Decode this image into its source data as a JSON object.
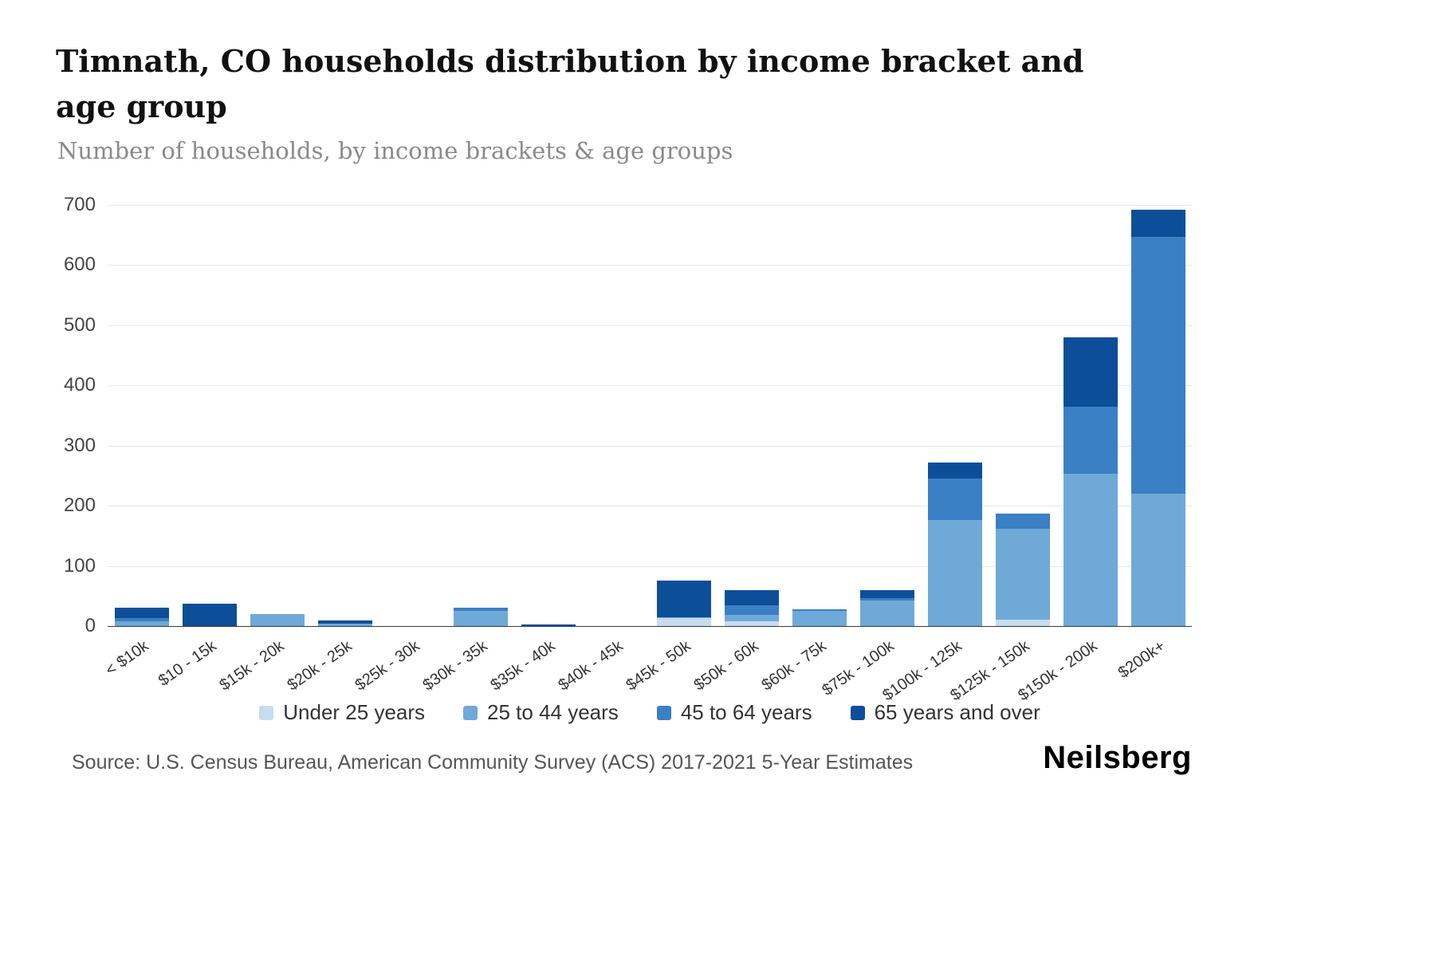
{
  "header": {
    "title": "Timnath, CO households distribution by income bracket and age group",
    "subtitle": "Number of households, by income brackets & age groups"
  },
  "chart_data": {
    "type": "bar",
    "stacked": true,
    "title": "Timnath, CO households distribution by income bracket and age group",
    "subtitle": "Number of households, by income brackets & age groups",
    "xlabel": "",
    "ylabel": "",
    "ylim": [
      0,
      700
    ],
    "ytick_step": 100,
    "yticks": [
      0,
      100,
      200,
      300,
      400,
      500,
      600,
      700
    ],
    "grid": true,
    "legend_position": "bottom",
    "categories": [
      "< $10k",
      "$10 - 15k",
      "$15k - 20k",
      "$20k - 25k",
      "$25k - 30k",
      "$30k - 35k",
      "$35k - 40k",
      "$40k - 45k",
      "$45k - 50k",
      "$50k - 60k",
      "$60k - 75k",
      "$75k - 100k",
      "$100k - 125k",
      "$125k - 150k",
      "$150k - 200k",
      "$200k+"
    ],
    "series": [
      {
        "name": "Under 25 years",
        "color": "#c7dcee",
        "values": [
          0,
          0,
          0,
          0,
          0,
          0,
          0,
          0,
          13,
          8,
          0,
          0,
          0,
          10,
          0,
          0
        ]
      },
      {
        "name": "25 to 44 years",
        "color": "#6fa9d8",
        "values": [
          8,
          0,
          20,
          4,
          0,
          25,
          0,
          0,
          2,
          10,
          25,
          42,
          176,
          152,
          253,
          220
        ]
      },
      {
        "name": "45 to 64 years",
        "color": "#3b7fc4",
        "values": [
          5,
          0,
          0,
          0,
          0,
          5,
          0,
          0,
          0,
          17,
          3,
          5,
          69,
          25,
          112,
          427
        ]
      },
      {
        "name": "65 years and over",
        "color": "#0d4e98",
        "values": [
          17,
          37,
          0,
          5,
          0,
          0,
          3,
          0,
          60,
          25,
          0,
          13,
          27,
          0,
          115,
          45
        ]
      }
    ]
  },
  "footer": {
    "source": "Source: U.S. Census Bureau, American Community Survey (ACS) 2017-2021 5-Year Estimates",
    "logo": "Neilsberg"
  }
}
